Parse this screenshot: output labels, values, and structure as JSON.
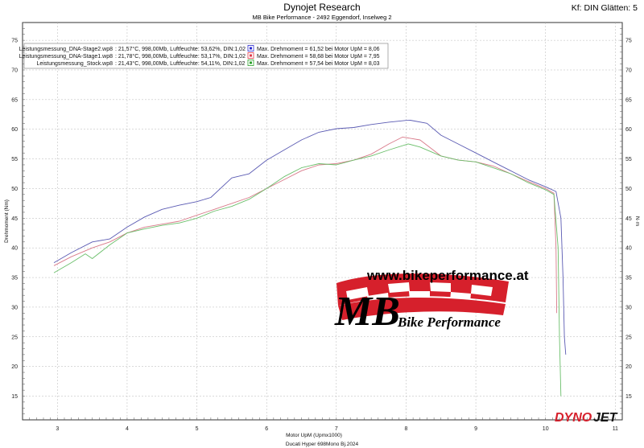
{
  "header": {
    "title": "Dynojet Research",
    "subtitle": "MB Bike Performance - 2492 Eggendorf, Inselweg 2",
    "smoothing": "Kf: DIN Glätten: 5"
  },
  "footer": {
    "vehicle": "Ducati Hyper 698Mono Bj.2024"
  },
  "logo": {
    "url": "www.bikeperformance.at",
    "mark": "MB",
    "tagline": "Bike Performance",
    "brand_left": "DYNO",
    "brand_right": "JET"
  },
  "chart_data": {
    "type": "line",
    "xlabel": "Motor UpM (Upmx1000)",
    "ylabel": "Drehmoment (Nm)",
    "ylabel_right": "N·m",
    "xlim": [
      2.5,
      11.1
    ],
    "ylim": [
      11,
      78
    ],
    "x_ticks": [
      3,
      4,
      5,
      6,
      7,
      8,
      9,
      10,
      11
    ],
    "y_ticks": [
      15,
      20,
      25,
      30,
      35,
      40,
      45,
      50,
      55,
      60,
      65,
      70,
      75
    ],
    "grid": true,
    "legend_position": "top-left",
    "series": [
      {
        "name": "Leistungsmessung_DNA-Stage2.wp8",
        "conditions": ": 21,57°C, 998,00Mb, Luftfeuchte: 53,62%, DIN:1,02",
        "summary": "Max. Drehmoment = 61,52 bei Motor UpM = 8,06",
        "color": "#5b5bb3",
        "marker_color": "#2a2ad0",
        "x": [
          2.95,
          3.2,
          3.5,
          3.75,
          4.0,
          4.25,
          4.5,
          4.75,
          5.0,
          5.2,
          5.5,
          5.75,
          6.0,
          6.25,
          6.5,
          6.75,
          7.0,
          7.25,
          7.5,
          7.75,
          8.0,
          8.06,
          8.3,
          8.5,
          8.75,
          9.0,
          9.25,
          9.5,
          9.75,
          10.0,
          10.15,
          10.22,
          10.25,
          10.27,
          10.29
        ],
        "y": [
          37.5,
          39.2,
          41.0,
          41.5,
          43.5,
          45.2,
          46.5,
          47.2,
          47.8,
          48.5,
          51.8,
          52.5,
          54.8,
          56.5,
          58.2,
          59.5,
          60.1,
          60.3,
          60.8,
          61.2,
          61.5,
          61.52,
          61.0,
          59.0,
          57.5,
          56.0,
          54.5,
          53.0,
          51.5,
          50.3,
          49.5,
          45.0,
          35.0,
          25.0,
          22.0
        ]
      },
      {
        "name": "Leistungsmessung_DNA-Stage1.wp8",
        "conditions": ": 21,78°C, 998,00Mb, Luftfeuchte: 53,17%, DIN:1,02",
        "summary": "Max. Drehmoment = 58,68 bei Motor UpM = 7,95",
        "color": "#d97a8a",
        "marker_color": "#e03a4a",
        "x": [
          2.95,
          3.2,
          3.5,
          3.75,
          4.0,
          4.25,
          4.5,
          4.75,
          5.0,
          5.25,
          5.5,
          5.75,
          6.0,
          6.25,
          6.5,
          6.75,
          7.0,
          7.25,
          7.5,
          7.75,
          7.95,
          8.2,
          8.5,
          8.75,
          9.0,
          9.25,
          9.5,
          9.75,
          10.0,
          10.12,
          10.15,
          10.16
        ],
        "y": [
          37.0,
          38.5,
          40.0,
          41.0,
          42.5,
          43.5,
          44.0,
          44.5,
          45.5,
          46.5,
          47.5,
          48.5,
          50.0,
          51.5,
          53.0,
          54.0,
          54.2,
          54.8,
          55.8,
          57.5,
          58.68,
          58.2,
          55.5,
          54.8,
          54.5,
          53.8,
          52.5,
          51.2,
          50.0,
          49.2,
          40.0,
          29.0
        ]
      },
      {
        "name": "Leistungsmessung_Stock.wp8",
        "conditions": ": 21,43°C, 998,00Mb, Luftfeuchte: 54,11%, DIN:1,02",
        "summary": "Max. Drehmoment = 57,54 bei Motor UpM = 8,03",
        "color": "#6bbf6b",
        "marker_color": "#2aa02a",
        "x": [
          2.95,
          3.2,
          3.4,
          3.5,
          3.75,
          4.0,
          4.25,
          4.5,
          4.75,
          5.0,
          5.25,
          5.5,
          5.75,
          6.0,
          6.25,
          6.5,
          6.75,
          7.0,
          7.25,
          7.5,
          7.75,
          8.03,
          8.2,
          8.5,
          8.75,
          9.0,
          9.25,
          9.5,
          9.75,
          10.0,
          10.12,
          10.18,
          10.2,
          10.22
        ],
        "y": [
          35.8,
          37.5,
          39.0,
          38.2,
          40.5,
          42.5,
          43.2,
          43.8,
          44.2,
          45.0,
          46.2,
          47.0,
          48.2,
          50.0,
          52.0,
          53.5,
          54.2,
          54.0,
          54.8,
          55.5,
          56.5,
          57.54,
          57.0,
          55.5,
          54.8,
          54.5,
          53.5,
          52.5,
          51.0,
          49.8,
          49.0,
          40.0,
          25.0,
          15.0
        ]
      }
    ]
  }
}
